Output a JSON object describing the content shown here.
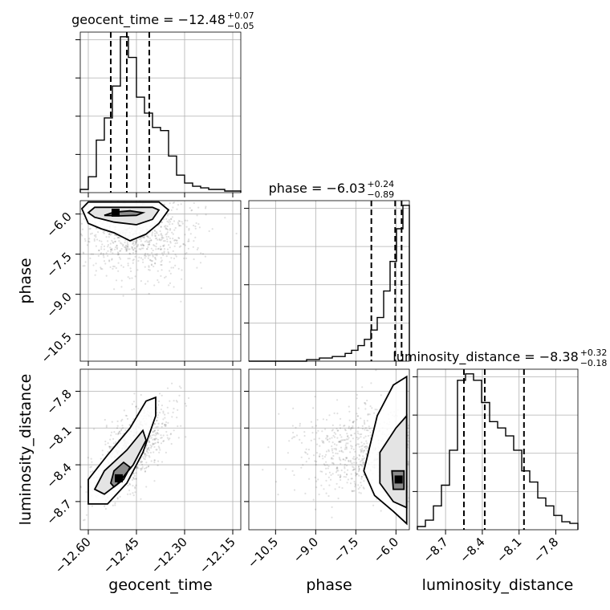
{
  "chart_data": {
    "type": "corner",
    "parameters": [
      {
        "name": "geocent_time",
        "label": "geocent_time",
        "title_main": "geocent_time = −12.48",
        "title_plus": "+0.07",
        "title_minus": "−0.05",
        "range": [
          -12.625,
          -12.125
        ],
        "ticks": [
          -12.6,
          -12.45,
          -12.3,
          -12.15
        ],
        "tick_labels": [
          "−12.60",
          "−12.45",
          "−12.30",
          "−12.15"
        ],
        "quantiles": [
          -12.53,
          -12.48,
          -12.41
        ],
        "hist": [
          0.02,
          0.1,
          0.33,
          0.47,
          0.67,
          0.98,
          0.85,
          0.6,
          0.5,
          0.41,
          0.39,
          0.23,
          0.11,
          0.06,
          0.04,
          0.03,
          0.02,
          0.02,
          0.01,
          0.01
        ]
      },
      {
        "name": "phase",
        "label": "phase",
        "title_main": "phase = −6.03",
        "title_plus": "+0.24",
        "title_minus": "−0.89",
        "range": [
          -11.5,
          -5.5
        ],
        "ticks": [
          -10.5,
          -9.0,
          -7.5,
          -6.0
        ],
        "tick_labels": [
          "−10.5",
          "−9.0",
          "−7.5",
          "−6.0"
        ],
        "quantiles": [
          -6.92,
          -6.03,
          -5.79
        ],
        "hist": [
          0.0,
          0.0,
          0.0,
          0.0,
          0.0,
          0.0,
          0.0,
          0.0,
          0.0,
          0.01,
          0.01,
          0.02,
          0.02,
          0.03,
          0.03,
          0.05,
          0.07,
          0.1,
          0.14,
          0.2,
          0.28,
          0.45,
          0.64,
          0.85,
          1.0
        ]
      },
      {
        "name": "luminosity_distance",
        "label": "luminosity_distance",
        "title_main": "luminosity_distance = −8.38",
        "title_plus": "+0.32",
        "title_minus": "−0.18",
        "range": [
          -8.93,
          -7.62
        ],
        "ticks": [
          -8.7,
          -8.4,
          -8.1,
          -7.8
        ],
        "tick_labels": [
          "−8.7",
          "−8.4",
          "−8.1",
          "−7.8"
        ],
        "quantiles": [
          -8.55,
          -8.38,
          -8.06
        ],
        "hist": [
          0.02,
          0.06,
          0.15,
          0.28,
          0.5,
          0.94,
          0.98,
          0.94,
          0.8,
          0.68,
          0.64,
          0.59,
          0.5,
          0.37,
          0.3,
          0.2,
          0.15,
          0.09,
          0.05,
          0.04
        ]
      }
    ],
    "pairs": [
      {
        "x": "geocent_time",
        "y": "phase",
        "peak": [
          -12.515,
          -5.95
        ],
        "contours": [
          [
            -12.55,
            -6.05
          ],
          [
            -12.52,
            -5.93
          ],
          [
            -12.47,
            -5.88
          ],
          [
            -12.43,
            -5.95
          ],
          [
            -12.45,
            -6.05
          ],
          [
            -12.5,
            -6.07
          ]
        ],
        "contours_mid": [
          [
            -12.6,
            -5.95
          ],
          [
            -12.58,
            -5.75
          ],
          [
            -12.4,
            -5.75
          ],
          [
            -12.38,
            -5.85
          ],
          [
            -12.4,
            -6.2
          ],
          [
            -12.45,
            -6.4
          ],
          [
            -12.52,
            -6.3
          ],
          [
            -12.58,
            -6.12
          ]
        ],
        "contours_outer": [
          [
            -12.62,
            -5.8
          ],
          [
            -12.6,
            -5.55
          ],
          [
            -12.38,
            -5.55
          ],
          [
            -12.35,
            -5.85
          ],
          [
            -12.38,
            -6.35
          ],
          [
            -12.42,
            -6.75
          ],
          [
            -12.47,
            -7.0
          ],
          [
            -12.52,
            -6.7
          ],
          [
            -12.56,
            -6.55
          ],
          [
            -12.6,
            -6.35
          ]
        ],
        "scatter_center": [
          -12.45,
          -6.8
        ],
        "scatter_spread": [
          0.09,
          1.3
        ]
      },
      {
        "x": "geocent_time",
        "y": "luminosity_distance",
        "peak": [
          -12.505,
          -8.51
        ],
        "contours": [
          [
            -12.53,
            -8.55
          ],
          [
            -12.52,
            -8.45
          ],
          [
            -12.49,
            -8.38
          ],
          [
            -12.47,
            -8.42
          ],
          [
            -12.49,
            -8.52
          ],
          [
            -12.52,
            -8.58
          ]
        ],
        "contours_mid": [
          [
            -12.58,
            -8.6
          ],
          [
            -12.55,
            -8.45
          ],
          [
            -12.48,
            -8.28
          ],
          [
            -12.43,
            -8.12
          ],
          [
            -12.42,
            -8.2
          ],
          [
            -12.46,
            -8.4
          ],
          [
            -12.51,
            -8.56
          ],
          [
            -12.55,
            -8.64
          ]
        ],
        "contours_outer": [
          [
            -12.6,
            -8.72
          ],
          [
            -12.6,
            -8.52
          ],
          [
            -12.54,
            -8.32
          ],
          [
            -12.47,
            -8.1
          ],
          [
            -12.42,
            -7.88
          ],
          [
            -12.39,
            -7.85
          ],
          [
            -12.39,
            -8.0
          ],
          [
            -12.43,
            -8.3
          ],
          [
            -12.48,
            -8.55
          ],
          [
            -12.54,
            -8.72
          ]
        ],
        "scatter_center": [
          -12.47,
          -8.3
        ],
        "scatter_spread": [
          0.06,
          0.25
        ]
      },
      {
        "x": "phase",
        "y": "luminosity_distance",
        "peak": [
          -5.9,
          -8.52
        ],
        "contours": [
          [
            -6.15,
            -8.45
          ],
          [
            -5.7,
            -8.45
          ],
          [
            -5.7,
            -8.6
          ],
          [
            -6.1,
            -8.6
          ]
        ],
        "contours_mid": [
          [
            -6.6,
            -8.3
          ],
          [
            -6.0,
            -8.1
          ],
          [
            -5.6,
            -8.0
          ],
          [
            -5.6,
            -8.75
          ],
          [
            -6.1,
            -8.7
          ],
          [
            -6.6,
            -8.55
          ]
        ],
        "contours_outer": [
          [
            -7.2,
            -8.45
          ],
          [
            -6.7,
            -8.0
          ],
          [
            -6.1,
            -7.75
          ],
          [
            -5.6,
            -7.68
          ],
          [
            -5.6,
            -8.88
          ],
          [
            -6.1,
            -8.78
          ],
          [
            -6.8,
            -8.65
          ]
        ],
        "scatter_center": [
          -6.9,
          -8.3
        ],
        "scatter_spread": [
          1.4,
          0.3
        ]
      }
    ]
  }
}
